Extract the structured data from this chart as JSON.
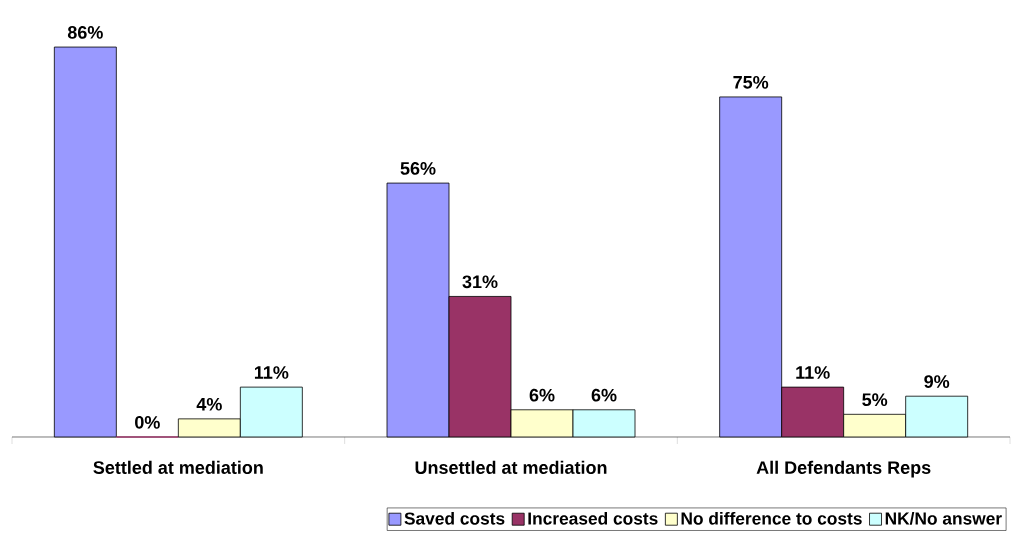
{
  "chart_data": {
    "type": "bar",
    "categories": [
      "Settled at mediation",
      "Unsettled at mediation",
      "All Defendants Reps"
    ],
    "series": [
      {
        "name": "Saved costs",
        "color": "#9999ff",
        "values": [
          86,
          56,
          75
        ],
        "value_labels": [
          "86%",
          "56%",
          "75%"
        ]
      },
      {
        "name": "Increased costs",
        "color": "#993366",
        "values": [
          0,
          31,
          11
        ],
        "value_labels": [
          "0%",
          "31%",
          "11%"
        ]
      },
      {
        "name": "No difference to costs",
        "color": "#ffffcc",
        "values": [
          4,
          6,
          5
        ],
        "value_labels": [
          "4%",
          "6%",
          "5%"
        ]
      },
      {
        "name": "NK/No answer",
        "color": "#ccffff",
        "values": [
          11,
          6,
          9
        ],
        "value_labels": [
          "11%",
          "6%",
          "9%"
        ]
      }
    ],
    "legend": "bottom"
  }
}
